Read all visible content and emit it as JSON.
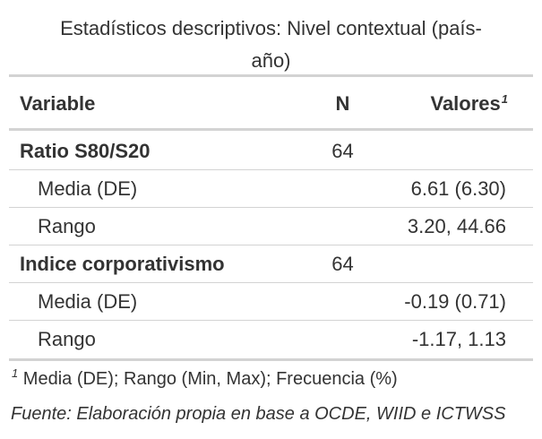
{
  "title": {
    "line1": "Estadísticos descriptivos: Nivel contextual (país-",
    "line2": "año)"
  },
  "header": {
    "variable": "Variable",
    "n": "N",
    "valores": "Valores",
    "valores_note": "1"
  },
  "rows": [
    {
      "variable": "Ratio S80/S20",
      "n": "64",
      "value": ""
    },
    {
      "variable": "Media (DE)",
      "n": "",
      "value": "6.61 (6.30)"
    },
    {
      "variable": "Rango",
      "n": "",
      "value": "3.20, 44.66"
    },
    {
      "variable": "Indice corporativismo",
      "n": "64",
      "value": ""
    },
    {
      "variable": "Media (DE)",
      "n": "",
      "value": "-0.19 (0.71)"
    },
    {
      "variable": "Rango",
      "n": "",
      "value": "-1.17, 1.13"
    }
  ],
  "footnote": {
    "marker": "1",
    "text": "Media (DE); Rango (Min, Max); Frecuencia (%)"
  },
  "source": "Fuente: Elaboración propia en base a OCDE, WIID e ICTWSS"
}
